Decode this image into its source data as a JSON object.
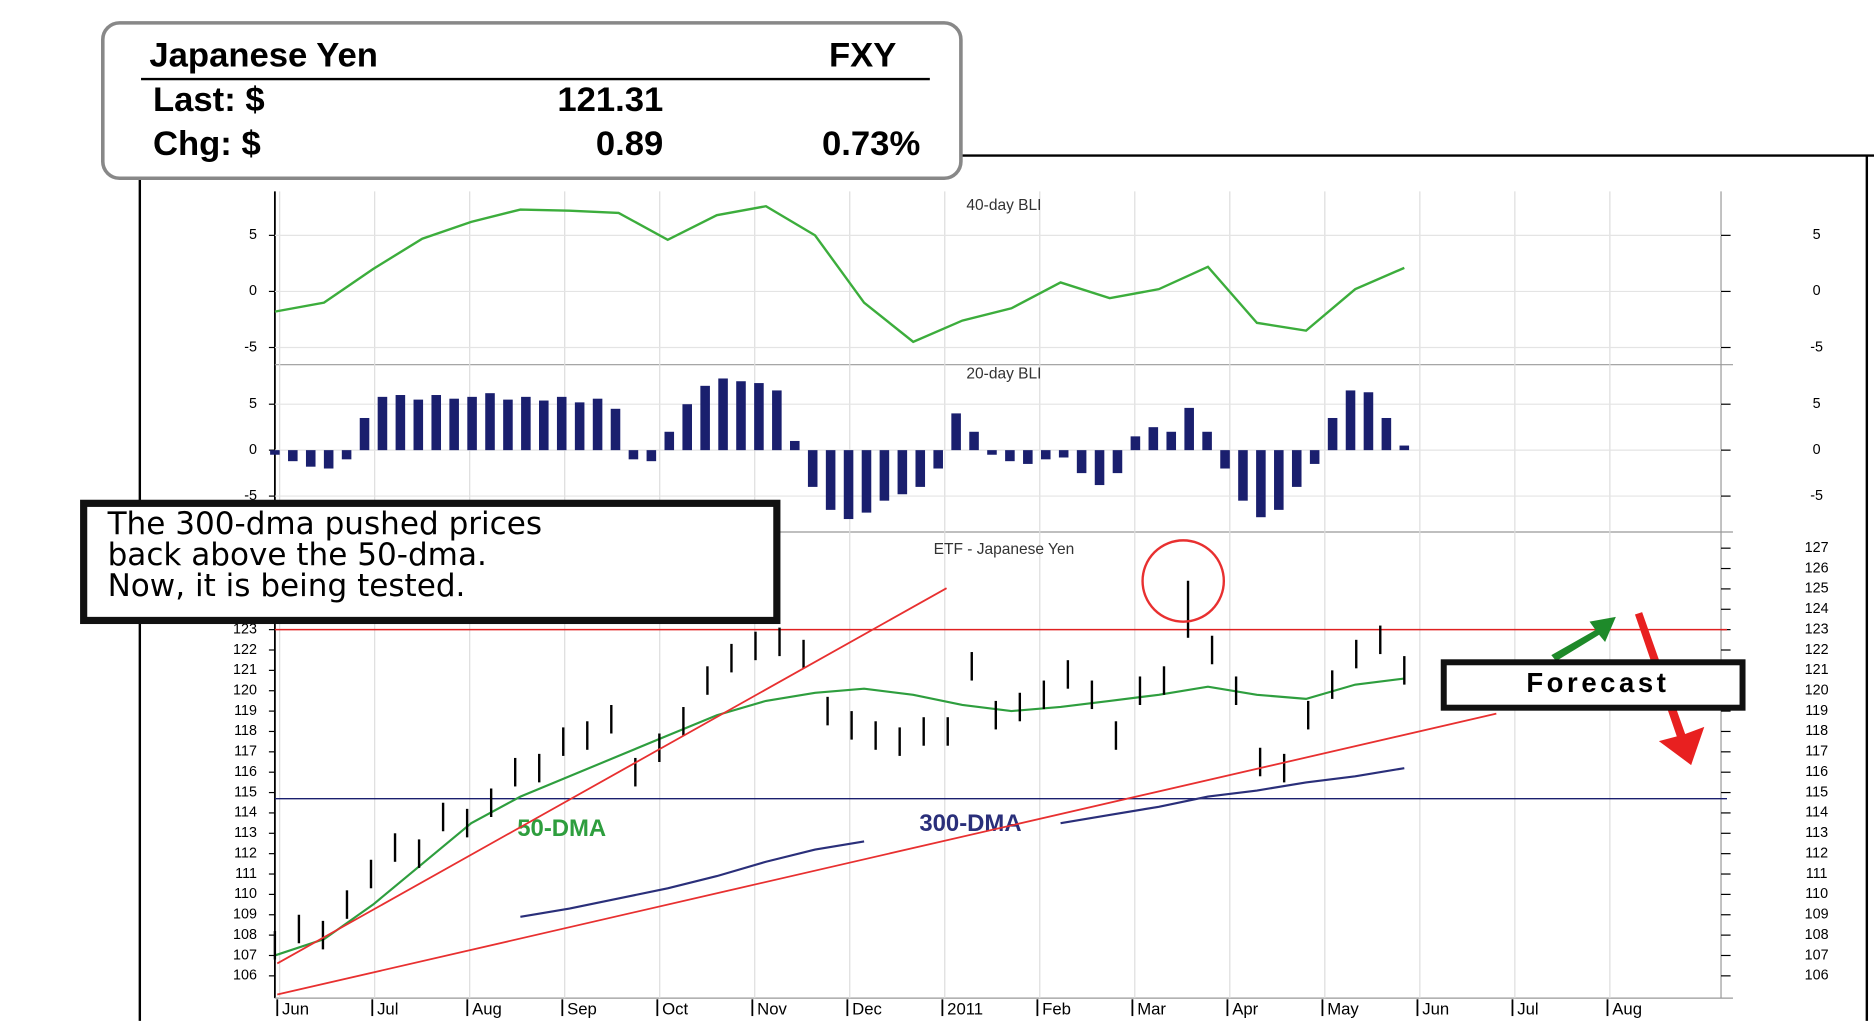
{
  "header": {
    "name": "Japanese Yen",
    "symbol": "FXY",
    "last_label": "Last: $",
    "last": "121.31",
    "chg_label": "Chg: $",
    "chg": "0.89",
    "chg_pct": "0.73%"
  },
  "annotation": {
    "lines": [
      "The 300-dma pushed prices",
      "back above the 50-dma.",
      "Now, it is being tested."
    ],
    "forecast": "Forecast"
  },
  "chart_data": [
    {
      "type": "line",
      "title": "40-day BLI",
      "color": "#3cad3c",
      "ylim": [
        -6,
        8.6
      ],
      "yticks": [
        5,
        0,
        -5
      ],
      "grid": true,
      "values": [
        -1.8,
        -1.0,
        2.0,
        4.7,
        6.2,
        7.3,
        7.2,
        7.0,
        4.6,
        6.8,
        7.6,
        5.0,
        -1.0,
        -4.5,
        -2.6,
        -1.5,
        0.8,
        -0.6,
        0.2,
        2.2,
        -2.8,
        -3.5,
        0.2,
        2.1
      ]
    },
    {
      "type": "bar",
      "title": "20-day BLI",
      "color": "#1a1f6e",
      "ylim": [
        -8,
        8
      ],
      "yticks": [
        5,
        0,
        -5
      ],
      "grid": true,
      "values": [
        -0.5,
        -1.2,
        -1.8,
        -2.0,
        -1.0,
        3.5,
        5.8,
        6.0,
        5.5,
        6.0,
        5.6,
        5.8,
        6.2,
        5.5,
        5.8,
        5.4,
        5.8,
        5.2,
        5.6,
        4.5,
        -1.0,
        -1.2,
        2.0,
        5.0,
        7.0,
        7.8,
        7.5,
        7.3,
        6.5,
        1.0,
        -4.0,
        -6.5,
        -7.5,
        -6.8,
        -5.5,
        -4.8,
        -4.0,
        -2.0,
        4.0,
        2.0,
        -0.5,
        -1.2,
        -1.5,
        -1.0,
        -0.8,
        -2.5,
        -3.8,
        -2.5,
        1.5,
        2.5,
        2.0,
        4.6,
        2.0,
        -2.0,
        -5.5,
        -7.3,
        -6.5,
        -4.0,
        -1.5,
        3.5,
        6.5,
        6.3,
        3.5,
        0.5
      ]
    },
    {
      "type": "hilo",
      "title": "ETF - Japanese Yen",
      "color": "#000000",
      "ylim": [
        105.2,
        127.5
      ],
      "yticks": [
        106,
        107,
        108,
        109,
        110,
        111,
        112,
        113,
        114,
        115,
        116,
        117,
        118,
        119,
        120,
        121,
        122,
        123,
        124,
        125,
        126,
        127
      ],
      "x_labels": [
        "Jun",
        "Jul",
        "Aug",
        "Sep",
        "Oct",
        "Nov",
        "Dec",
        "2011",
        "Feb",
        "Mar",
        "Apr",
        "May",
        "Jun",
        "Jul",
        "Aug"
      ],
      "high": [
        108.2,
        109.0,
        108.7,
        110.2,
        111.7,
        113.0,
        112.7,
        114.5,
        114.2,
        115.2,
        116.7,
        116.9,
        118.2,
        118.5,
        119.3,
        116.7,
        117.9,
        119.2,
        121.2,
        122.3,
        122.9,
        123.1,
        122.5,
        119.7,
        119.0,
        118.5,
        118.2,
        118.7,
        118.7,
        121.9,
        119.5,
        119.9,
        120.5,
        121.5,
        120.5,
        118.5,
        120.7,
        121.2,
        125.4,
        122.7,
        120.7,
        117.2,
        116.9,
        119.5,
        121.0,
        122.5,
        123.2,
        121.7
      ],
      "low": [
        106.8,
        107.6,
        107.3,
        108.8,
        110.3,
        111.6,
        111.3,
        113.1,
        112.8,
        113.8,
        115.3,
        115.5,
        116.8,
        117.1,
        117.9,
        115.3,
        116.5,
        117.8,
        119.8,
        120.9,
        121.5,
        121.7,
        121.1,
        118.3,
        117.6,
        117.1,
        116.8,
        117.3,
        117.3,
        120.5,
        118.1,
        118.5,
        119.1,
        120.1,
        119.1,
        117.1,
        119.3,
        119.8,
        122.6,
        121.3,
        119.3,
        115.8,
        115.5,
        118.1,
        119.6,
        121.1,
        121.8,
        120.3
      ],
      "series": [
        {
          "name": "50-DMA",
          "color": "#2e9e3e",
          "values": [
            107.0,
            107.8,
            109.5,
            111.5,
            113.5,
            114.8,
            115.8,
            116.8,
            117.8,
            118.8,
            119.5,
            119.9,
            120.1,
            119.8,
            119.3,
            119.0,
            119.2,
            119.5,
            119.8,
            120.2,
            119.8,
            119.6,
            120.3,
            120.6
          ]
        },
        {
          "name": "300-DMA",
          "color": "#2a2f7a",
          "values": [
            null,
            null,
            null,
            null,
            null,
            108.9,
            109.3,
            109.8,
            110.3,
            110.9,
            111.6,
            112.2,
            112.6,
            null,
            null,
            null,
            113.5,
            113.9,
            114.3,
            114.8,
            115.1,
            115.5,
            115.8,
            116.2
          ]
        }
      ],
      "reference_lines": [
        {
          "value": 123,
          "color": "#e02020"
        },
        {
          "value": 114.7,
          "color": "#1a1f6e"
        }
      ]
    }
  ]
}
